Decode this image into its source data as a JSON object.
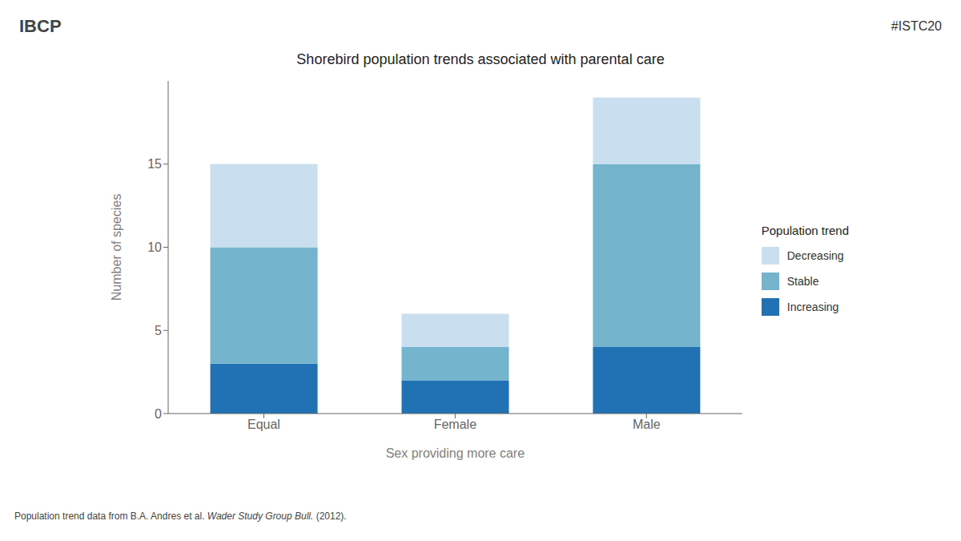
{
  "chart_data": {
    "type": "bar",
    "stacked": true,
    "title": "Shorebird population trends associated with parental care",
    "x_label": "Sex providing more care",
    "y_label": "Number of species",
    "categories": [
      "Equal",
      "Female",
      "Male"
    ],
    "series": [
      {
        "name": "Increasing",
        "color": "#2171b5",
        "values": [
          3,
          2,
          4
        ]
      },
      {
        "name": "Stable",
        "color": "#74b4cc",
        "values": [
          7,
          2,
          11
        ]
      },
      {
        "name": "Decreasing",
        "color": "#c9dff0",
        "values": [
          5,
          2,
          4
        ]
      }
    ],
    "legend_title": "Population trend",
    "legend": "right",
    "ylim": [
      0,
      20
    ],
    "yticks": [
      0,
      5,
      10,
      15
    ],
    "grid": false,
    "annotations": [
      "#ISTC20",
      "IBCP",
      "Population trend data from B.A. Andres et al. ",
      "Wader Study Group Bull.",
      " (2012)."
    ]
  }
}
